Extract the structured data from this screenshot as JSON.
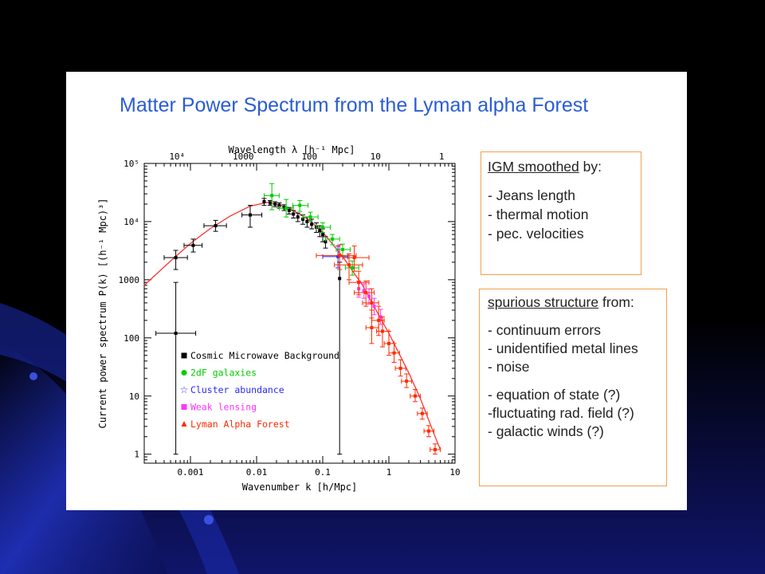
{
  "slide": {
    "title": "Matter Power Spectrum from the Lyman alpha Forest",
    "colors": {
      "background": "#000000",
      "slide_bg": "#ffffff",
      "title": "#2a5cd4",
      "box_border": "#f0a050"
    }
  },
  "note_igm": {
    "heading_underlined": "IGM smoothed",
    "heading_rest": " by:",
    "items": [
      "- Jeans length",
      "- thermal motion",
      "- pec. velocities"
    ]
  },
  "note_spurious": {
    "heading_underlined": "spurious structure",
    "heading_rest": " from:",
    "items": [
      "- continuum errors",
      "- unidentified metal lines",
      "- noise"
    ],
    "items_b": [
      "- equation of state (?)",
      "-fluctuating rad. field (?)",
      "- galactic winds (?)"
    ]
  },
  "chart_data": {
    "type": "scatter",
    "xscale": "log",
    "yscale": "log",
    "xlim": [
      0.0002,
      10
    ],
    "ylim": [
      0.7,
      100000
    ],
    "xlabel": "Wavenumber k [h/Mpc]",
    "ylabel": "Current power spectrum P(k) [(h⁻¹ Mpc)³]",
    "x2label": "Wavelength λ [h⁻¹ Mpc]",
    "xticks": [
      {
        "v": 0.001,
        "label": "0.001"
      },
      {
        "v": 0.01,
        "label": "0.01"
      },
      {
        "v": 0.1,
        "label": "0.1"
      },
      {
        "v": 1,
        "label": "1"
      },
      {
        "v": 10,
        "label": "10"
      }
    ],
    "yticks": [
      {
        "v": 1,
        "label": "1"
      },
      {
        "v": 10,
        "label": "10"
      },
      {
        "v": 100,
        "label": "100"
      },
      {
        "v": 1000,
        "label": "1000"
      },
      {
        "v": 10000,
        "label": "10⁴"
      },
      {
        "v": 100000,
        "label": "10⁵"
      }
    ],
    "x2ticks": [
      {
        "lambda": 10000,
        "label": "10⁴"
      },
      {
        "lambda": 1000,
        "label": "1000"
      },
      {
        "lambda": 100,
        "label": "100"
      },
      {
        "lambda": 10,
        "label": "10"
      },
      {
        "lambda": 1,
        "label": "1"
      }
    ],
    "legend": {
      "placement": "lower-left",
      "entries": [
        {
          "name": "Cosmic Microwave Background",
          "color": "#000000",
          "marker": "square"
        },
        {
          "name": "2dF galaxies",
          "color": "#00cc00",
          "marker": "circle"
        },
        {
          "name": "Cluster abundance",
          "color": "#2a2aff",
          "marker": "star"
        },
        {
          "name": "Weak lensing",
          "color": "#ff33ff",
          "marker": "square"
        },
        {
          "name": "Lyman Alpha Forest",
          "color": "#ff2a00",
          "marker": "triangle"
        }
      ]
    },
    "model_curve": {
      "color": "#ff3333",
      "points": [
        [
          0.0002,
          800
        ],
        [
          0.0005,
          2100
        ],
        [
          0.001,
          4200
        ],
        [
          0.002,
          7600
        ],
        [
          0.004,
          12500
        ],
        [
          0.008,
          18500
        ],
        [
          0.015,
          21500
        ],
        [
          0.03,
          17500
        ],
        [
          0.06,
          11000
        ],
        [
          0.1,
          6600
        ],
        [
          0.2,
          2500
        ],
        [
          0.4,
          800
        ],
        [
          0.7,
          250
        ],
        [
          1,
          120
        ],
        [
          2,
          25
        ],
        [
          3,
          9
        ],
        [
          5,
          2
        ],
        [
          6,
          1.2
        ]
      ]
    },
    "series": [
      {
        "name": "Cosmic Microwave Background",
        "color": "#000000",
        "points": [
          {
            "x": 0.0006,
            "y": 120,
            "ylo": 1,
            "yhi": 900,
            "xlo": 0.0003,
            "xhi": 0.0012
          },
          {
            "x": 0.0006,
            "y": 2400,
            "ylo": 1500,
            "yhi": 3200,
            "xlo": 0.0004,
            "xhi": 0.0009
          },
          {
            "x": 0.0011,
            "y": 3900,
            "ylo": 3000,
            "yhi": 5000,
            "xlo": 0.0008,
            "xhi": 0.0015
          },
          {
            "x": 0.0024,
            "y": 8500,
            "ylo": 6800,
            "yhi": 10500,
            "xlo": 0.0016,
            "xhi": 0.0035
          },
          {
            "x": 0.008,
            "y": 13000,
            "ylo": 8000,
            "yhi": 19000,
            "xlo": 0.006,
            "xhi": 0.012
          },
          {
            "x": 0.013,
            "y": 22000,
            "ylo": 19000,
            "yhi": 25000
          },
          {
            "x": 0.016,
            "y": 21000,
            "ylo": 19000,
            "yhi": 23000
          },
          {
            "x": 0.019,
            "y": 20000,
            "ylo": 18000,
            "yhi": 22000
          },
          {
            "x": 0.022,
            "y": 19000,
            "ylo": 17000,
            "yhi": 21000
          },
          {
            "x": 0.026,
            "y": 17500,
            "ylo": 15500,
            "yhi": 19500
          },
          {
            "x": 0.031,
            "y": 15500,
            "ylo": 13500,
            "yhi": 17500
          },
          {
            "x": 0.036,
            "y": 13500,
            "ylo": 11500,
            "yhi": 15500
          },
          {
            "x": 0.042,
            "y": 12000,
            "ylo": 10000,
            "yhi": 14000
          },
          {
            "x": 0.05,
            "y": 11000,
            "ylo": 9000,
            "yhi": 13000
          },
          {
            "x": 0.058,
            "y": 10000,
            "ylo": 8000,
            "yhi": 12000
          },
          {
            "x": 0.068,
            "y": 9000,
            "ylo": 7500,
            "yhi": 11000
          },
          {
            "x": 0.08,
            "y": 8000,
            "ylo": 6500,
            "yhi": 9500
          },
          {
            "x": 0.09,
            "y": 7000,
            "ylo": 5500,
            "yhi": 8500
          },
          {
            "x": 0.1,
            "y": 6000,
            "ylo": 4500,
            "yhi": 7500
          },
          {
            "x": 0.11,
            "y": 4500,
            "ylo": 3500,
            "yhi": 5500
          },
          {
            "x": 0.18,
            "y": 1050,
            "ylo": 1,
            "yhi": 2000
          }
        ]
      },
      {
        "name": "2dF galaxies",
        "color": "#00cc00",
        "points": [
          {
            "x": 0.017,
            "y": 28000,
            "ylo": 16000,
            "yhi": 45000,
            "xlo": 0.013,
            "xhi": 0.022
          },
          {
            "x": 0.028,
            "y": 17000,
            "ylo": 12000,
            "yhi": 24000,
            "xlo": 0.022,
            "xhi": 0.036
          },
          {
            "x": 0.045,
            "y": 19000,
            "ylo": 15000,
            "yhi": 23000,
            "xlo": 0.035,
            "xhi": 0.06
          },
          {
            "x": 0.065,
            "y": 12000,
            "ylo": 10000,
            "yhi": 14500,
            "xlo": 0.05,
            "xhi": 0.085
          },
          {
            "x": 0.1,
            "y": 8000,
            "ylo": 6500,
            "yhi": 9500,
            "xlo": 0.08,
            "xhi": 0.13
          },
          {
            "x": 0.14,
            "y": 5000,
            "ylo": 4000,
            "yhi": 6000,
            "xlo": 0.11,
            "xhi": 0.18
          },
          {
            "x": 0.2,
            "y": 3300,
            "ylo": 2600,
            "yhi": 4100,
            "xlo": 0.16,
            "xhi": 0.26
          },
          {
            "x": 0.28,
            "y": 1600,
            "ylo": 1200,
            "yhi": 2100,
            "xlo": 0.22,
            "xhi": 0.35
          }
        ]
      },
      {
        "name": "Cluster abundance",
        "color": "#2a2aff",
        "points": [
          {
            "x": 0.17,
            "y": 2500,
            "ylo": 1600,
            "yhi": 3800,
            "xlo": 0.1,
            "xhi": 0.24
          }
        ]
      },
      {
        "name": "Weak lensing",
        "color": "#ff33ff",
        "points": [
          {
            "x": 0.35,
            "y": 700,
            "ylo": 500,
            "yhi": 950
          },
          {
            "x": 0.42,
            "y": 650,
            "ylo": 480,
            "yhi": 850
          },
          {
            "x": 0.5,
            "y": 520,
            "ylo": 380,
            "yhi": 700
          },
          {
            "x": 0.6,
            "y": 350,
            "ylo": 250,
            "yhi": 480
          },
          {
            "x": 0.75,
            "y": 230,
            "ylo": 170,
            "yhi": 310
          }
        ]
      },
      {
        "name": "Lyman Alpha Forest",
        "color": "#ff2a00",
        "points": [
          {
            "x": 0.18,
            "y": 2600,
            "ylo": 1500,
            "yhi": 4000,
            "xlo": 0.08,
            "xhi": 0.32
          },
          {
            "x": 0.25,
            "y": 1800,
            "ylo": 1000,
            "yhi": 2800,
            "xlo": 0.15,
            "xhi": 0.4
          },
          {
            "x": 0.3,
            "y": 2400,
            "ylo": 1400,
            "yhi": 3800,
            "xlo": 0.2,
            "xhi": 0.5
          },
          {
            "x": 0.35,
            "y": 900,
            "ylo": 550,
            "yhi": 1400,
            "xlo": 0.25,
            "xhi": 0.5
          },
          {
            "x": 0.45,
            "y": 600,
            "ylo": 350,
            "yhi": 950,
            "xlo": 0.3,
            "xhi": 0.6
          },
          {
            "x": 0.55,
            "y": 400,
            "ylo": 220,
            "yhi": 700,
            "xlo": 0.4,
            "xhi": 0.7
          },
          {
            "x": 0.55,
            "y": 150,
            "ylo": 80,
            "yhi": 300,
            "xlo": 0.45,
            "xhi": 0.7
          },
          {
            "x": 0.7,
            "y": 200,
            "ylo": 110,
            "yhi": 350,
            "xlo": 0.55,
            "xhi": 0.85
          },
          {
            "x": 0.8,
            "y": 130,
            "ylo": 70,
            "yhi": 230,
            "xlo": 0.65,
            "xhi": 1
          },
          {
            "x": 1,
            "y": 80,
            "ylo": 50,
            "yhi": 130,
            "xlo": 0.85,
            "xhi": 1.2
          },
          {
            "x": 1.2,
            "y": 55,
            "ylo": 38,
            "yhi": 80,
            "xlo": 1,
            "xhi": 1.45
          },
          {
            "x": 1.5,
            "y": 30,
            "ylo": 22,
            "yhi": 42,
            "xlo": 1.25,
            "xhi": 1.8
          },
          {
            "x": 1.85,
            "y": 18,
            "ylo": 14,
            "yhi": 24,
            "xlo": 1.55,
            "xhi": 2.2
          },
          {
            "x": 2.5,
            "y": 10,
            "ylo": 8,
            "yhi": 13,
            "xlo": 2.1,
            "xhi": 3
          },
          {
            "x": 3.2,
            "y": 5,
            "ylo": 4,
            "yhi": 6.2,
            "xlo": 2.7,
            "xhi": 3.8
          },
          {
            "x": 4,
            "y": 2.5,
            "ylo": 2,
            "yhi": 3.1,
            "xlo": 3.4,
            "xhi": 4.8
          },
          {
            "x": 5,
            "y": 1.2,
            "ylo": 1,
            "yhi": 1.5,
            "xlo": 4.2,
            "xhi": 6
          }
        ]
      }
    ]
  }
}
